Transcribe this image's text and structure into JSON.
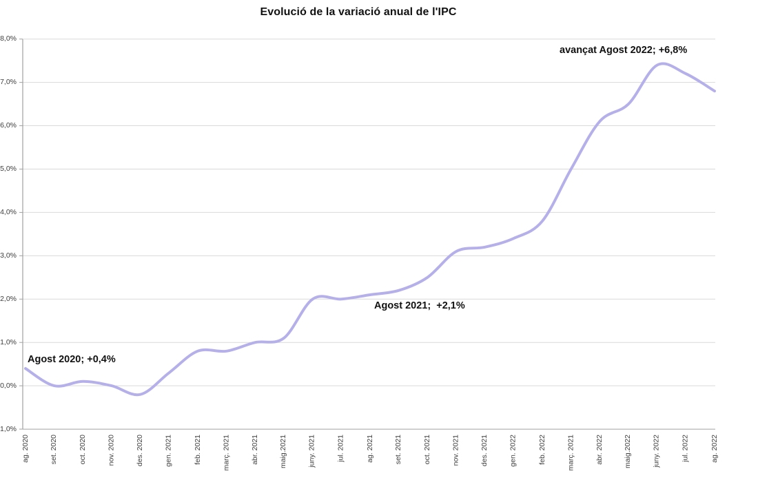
{
  "title": "Evolució de la variació anual de l'IPC",
  "annotations": {
    "agost_2020": "Agost 2020; +0,4%",
    "agost_2021": "Agost 2021;  +2,1%",
    "avancat_agost_2022": "avançat Agost 2022; +6,8%"
  },
  "chart_data": {
    "type": "line",
    "title": "Evolució de la variació anual de l'IPC",
    "categories": [
      "ag. 2020",
      "set. 2020",
      "oct. 2020",
      "nov. 2020",
      "des. 2020",
      "gen. 2021",
      "feb. 2021",
      "març. 2021",
      "abr. 2021",
      "maig.2021",
      "juny. 2021",
      "jul. 2021",
      "ag. 2021",
      "set. 2021",
      "oct. 2021",
      "nov. 2021",
      "des. 2021",
      "gen. 2022",
      "feb. 2022",
      "març. 2021",
      "abr. 2022",
      "maig.2022",
      "juny. 2022",
      "jul. 2022",
      "ag. 2022"
    ],
    "values": [
      0.4,
      0.0,
      0.1,
      0.0,
      -0.2,
      0.3,
      0.8,
      0.8,
      1.0,
      1.1,
      2.0,
      2.0,
      2.1,
      2.2,
      2.5,
      3.1,
      3.2,
      3.4,
      3.8,
      5.0,
      6.1,
      6.5,
      7.4,
      7.2,
      6.8
    ],
    "y_ticks": [
      {
        "label": "8,0%",
        "value": 8
      },
      {
        "label": "7,0%",
        "value": 7
      },
      {
        "label": "6,0%",
        "value": 6
      },
      {
        "label": "5,0%",
        "value": 5
      },
      {
        "label": "4,0%",
        "value": 4
      },
      {
        "label": "3,0%",
        "value": 3
      },
      {
        "label": "2,0%",
        "value": 2
      },
      {
        "label": "1,0%",
        "value": 1
      },
      {
        "label": "0,0%",
        "value": 0
      },
      {
        "label": "-1,0%",
        "value": -1
      }
    ],
    "ylim": [
      -1.0,
      8.0
    ],
    "grid": true,
    "legend_position": "none",
    "line_smoothed": true,
    "annotations": [
      {
        "text": "Agost 2020; +0,4%",
        "category": "ag. 2020",
        "value": 0.4
      },
      {
        "text": "Agost 2021;  +2,1%",
        "category": "ag. 2021",
        "value": 2.1
      },
      {
        "text": "avançat Agost 2022; +6,8%",
        "category": "ag. 2022",
        "value": 6.8
      }
    ],
    "colors": {
      "line": "#b5b0e9",
      "gridline": "#d9d9d9",
      "axis": "#a0a0a0",
      "tick_text": "#3d3d3d",
      "title_text": "#111111"
    }
  }
}
